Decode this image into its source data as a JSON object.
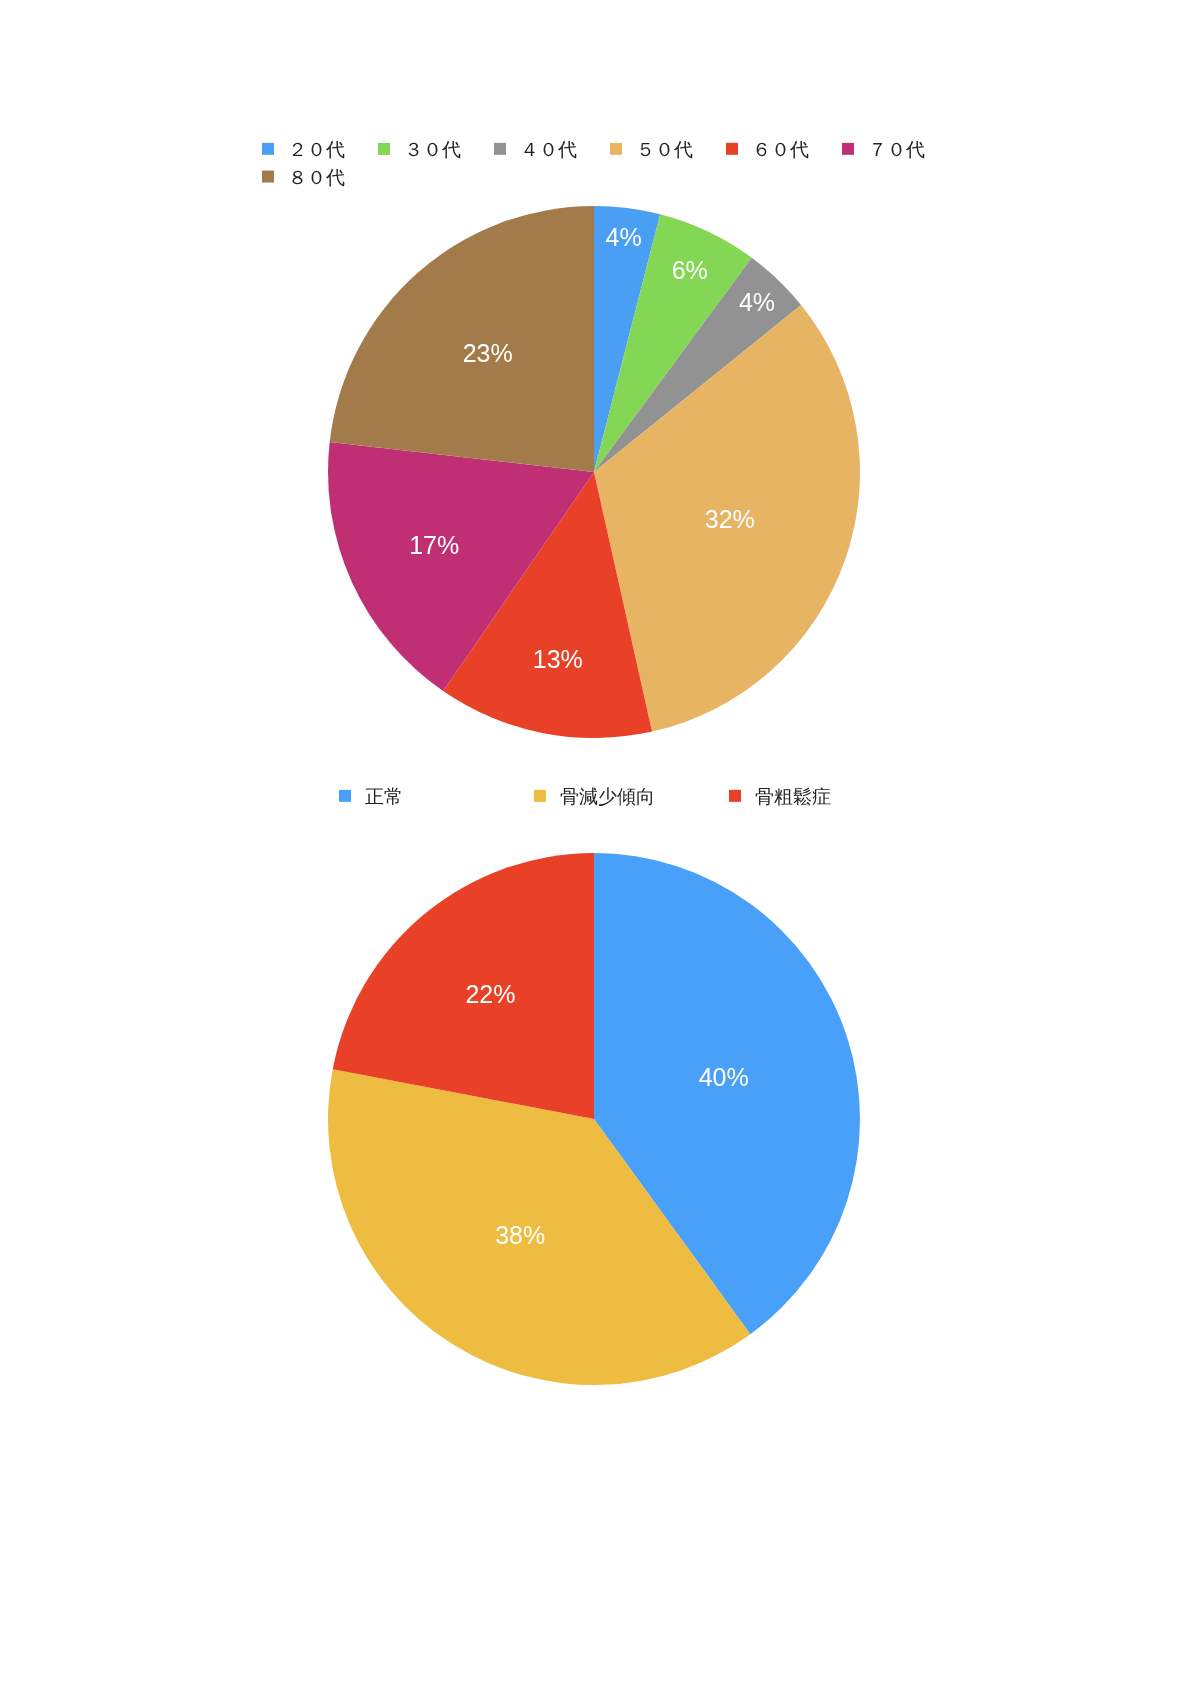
{
  "chart_data": [
    {
      "type": "pie",
      "categories": [
        "２０代",
        "３０代",
        "４０代",
        "５０代",
        "６０代",
        "７０代",
        "８０代"
      ],
      "values": [
        4.0,
        6.1,
        4.1,
        32.3,
        13.1,
        17.2,
        23.2
      ],
      "value_labels": [
        "4%",
        "6%",
        "4%",
        "32%",
        "13%",
        "17%",
        "23%"
      ],
      "colors": [
        "#4a9ff5",
        "#84d655",
        "#929292",
        "#e6b462",
        "#e84127",
        "#c02f74",
        "#a37b4a"
      ],
      "legend": "top"
    },
    {
      "type": "pie",
      "categories": [
        "正常",
        "骨減少傾向",
        "骨粗鬆症"
      ],
      "values": [
        40,
        38,
        22
      ],
      "value_labels": [
        "40%",
        "38%",
        "22%"
      ],
      "colors": [
        "#48a0f8",
        "#edbc40",
        "#e84127"
      ],
      "legend": "top"
    }
  ]
}
